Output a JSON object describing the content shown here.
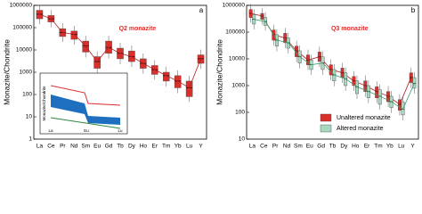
{
  "chart_data": [
    {
      "type": "box",
      "title": "Q2 monazite",
      "panel_label": "a",
      "y_label": "Monazite/Chondrite",
      "log_scale": true,
      "ylim": [
        1,
        1000000
      ],
      "yticks": [
        1,
        10,
        100,
        1000,
        10000,
        100000,
        1000000
      ],
      "categories": [
        "La",
        "Ce",
        "Pr",
        "Nd",
        "Sm",
        "Eu",
        "Gd",
        "Tb",
        "Dy",
        "Ho",
        "Er",
        "Tm",
        "Yb",
        "Lu",
        "Y"
      ],
      "series": [
        {
          "color": "#d9302c",
          "values": [
            400000,
            250000,
            60000,
            50000,
            15000,
            3000,
            13000,
            7000,
            5000,
            2500,
            1300,
            700,
            400,
            200,
            4000
          ],
          "low": [
            250000,
            180000,
            40000,
            30000,
            8000,
            1500,
            7000,
            4000,
            3000,
            1500,
            800,
            400,
            200,
            80,
            2500
          ],
          "high": [
            600000,
            350000,
            90000,
            70000,
            25000,
            5000,
            25000,
            12000,
            9000,
            4000,
            2000,
            1000,
            700,
            400,
            6000
          ]
        }
      ],
      "inset": {
        "y_label": "Monazite/Chondrite",
        "x_labels": [
          "La",
          "Eu",
          "Lu"
        ]
      }
    },
    {
      "type": "box",
      "title": "Q3 monazite",
      "panel_label": "b",
      "y_label": "Monazite/Chondrite",
      "log_scale": true,
      "ylim": [
        10,
        1000000
      ],
      "yticks": [
        10,
        100,
        1000,
        10000,
        100000,
        1000000
      ],
      "categories": [
        "La",
        "Ce",
        "Pr",
        "Nd",
        "Sm",
        "Eu",
        "Gd",
        "Tb",
        "Dy",
        "Ho",
        "Er",
        "Tm",
        "Yb",
        "Lu",
        "Y"
      ],
      "legend": "lower right",
      "series": [
        {
          "name": "Unaltered monazite",
          "color": "#d9302c",
          "values": [
            500000,
            400000,
            80000,
            60000,
            20000,
            9000,
            12000,
            4000,
            3000,
            1500,
            1000,
            600,
            400,
            200,
            2000
          ],
          "low": [
            350000,
            300000,
            50000,
            40000,
            12000,
            6000,
            8000,
            2500,
            2000,
            1000,
            600,
            350,
            250,
            120,
            1300
          ],
          "high": [
            700000,
            500000,
            120000,
            90000,
            30000,
            14000,
            18000,
            6000,
            4500,
            2200,
            1500,
            900,
            600,
            300,
            3000
          ]
        },
        {
          "name": "Altered monazite",
          "color": "#a8d8c0",
          "values": [
            300000,
            250000,
            50000,
            40000,
            12000,
            6000,
            7000,
            2500,
            1800,
            900,
            600,
            400,
            250,
            130,
            1200
          ],
          "low": [
            200000,
            180000,
            30000,
            25000,
            7000,
            4000,
            4000,
            1500,
            1000,
            500,
            350,
            200,
            150,
            80,
            800
          ],
          "high": [
            450000,
            350000,
            80000,
            60000,
            20000,
            9000,
            12000,
            4000,
            3000,
            1500,
            1000,
            700,
            400,
            250,
            2000
          ]
        }
      ]
    }
  ]
}
